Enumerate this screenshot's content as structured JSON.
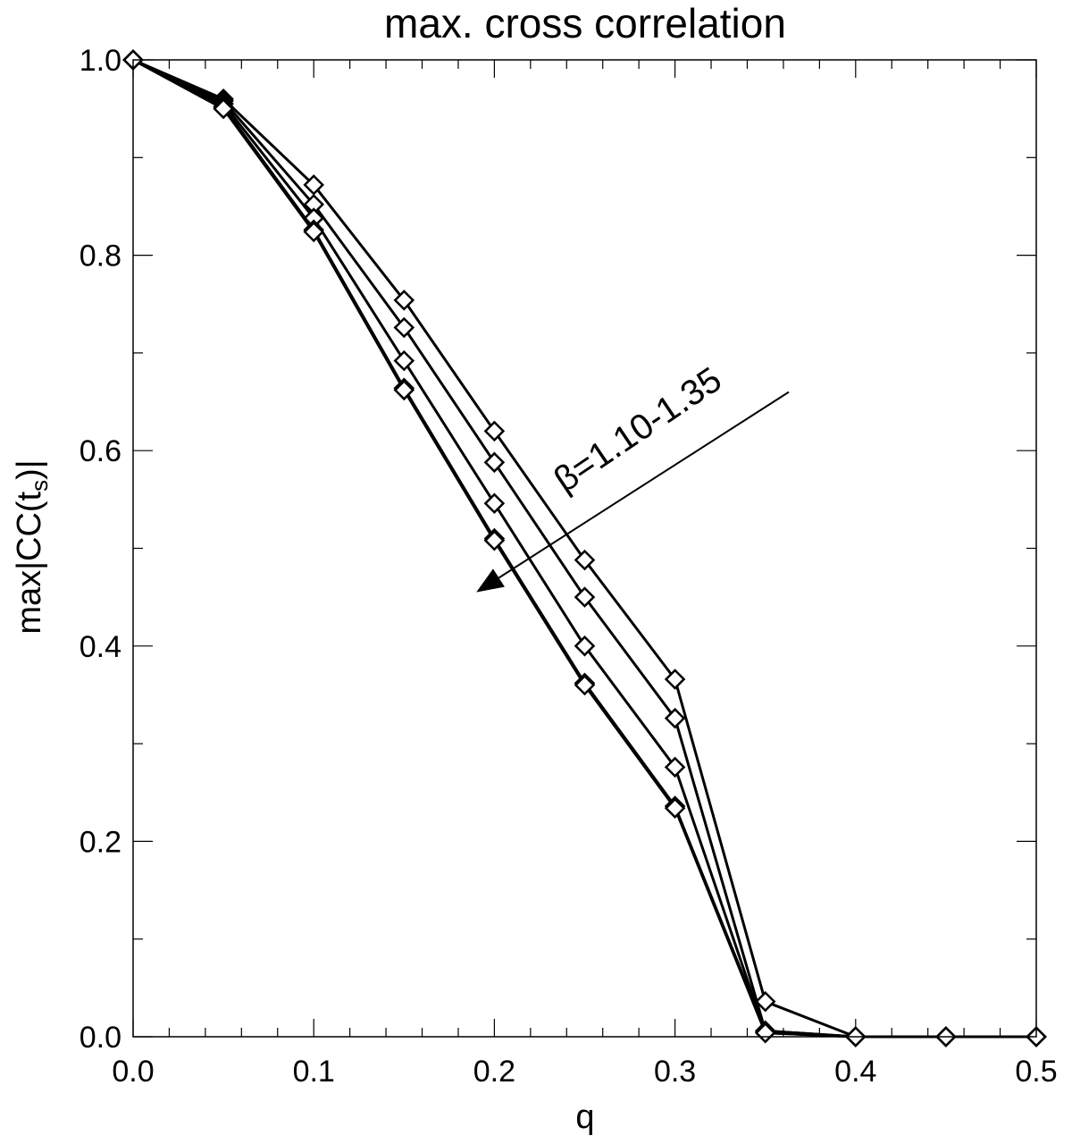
{
  "chart_data": {
    "type": "line",
    "title": "max. cross correlation",
    "xlabel": "q",
    "ylabel_main": "max|CC(t",
    "ylabel_sub": "s",
    "ylabel_end": ")|",
    "xlim": [
      0.0,
      0.5
    ],
    "ylim": [
      0.0,
      1.0
    ],
    "x_ticks": [
      "0.0",
      "0.1",
      "0.2",
      "0.3",
      "0.4",
      "0.5"
    ],
    "y_ticks": [
      "0.0",
      "0.2",
      "0.4",
      "0.6",
      "0.8",
      "1.0"
    ],
    "grid": false,
    "marker": "diamond",
    "line_color": "#000000",
    "x": [
      0.0,
      0.05,
      0.1,
      0.15,
      0.2,
      0.25,
      0.3,
      0.35,
      0.4,
      0.45,
      0.5
    ],
    "series": [
      {
        "values": [
          1.0,
          0.96,
          0.872,
          0.754,
          0.62,
          0.488,
          0.366,
          0.036,
          0.0,
          0.0,
          0.0
        ]
      },
      {
        "values": [
          1.0,
          0.958,
          0.852,
          0.726,
          0.588,
          0.45,
          0.326,
          0.006,
          0.0,
          0.0,
          0.0
        ]
      },
      {
        "values": [
          1.0,
          0.955,
          0.838,
          0.692,
          0.546,
          0.4,
          0.276,
          0.004,
          0.0,
          0.0,
          0.0
        ]
      },
      {
        "values": [
          1.0,
          0.952,
          0.826,
          0.664,
          0.51,
          0.362,
          0.236,
          0.006,
          0.0,
          0.0,
          0.0
        ]
      },
      {
        "values": [
          1.0,
          0.95,
          0.824,
          0.662,
          0.508,
          0.36,
          0.234,
          0.004,
          0.0,
          0.0,
          0.0
        ]
      }
    ],
    "annotation": {
      "text": "β=1.10-1.35",
      "arrow_from": [
        0.363,
        0.66
      ],
      "arrow_to": [
        0.19,
        0.455
      ]
    }
  }
}
